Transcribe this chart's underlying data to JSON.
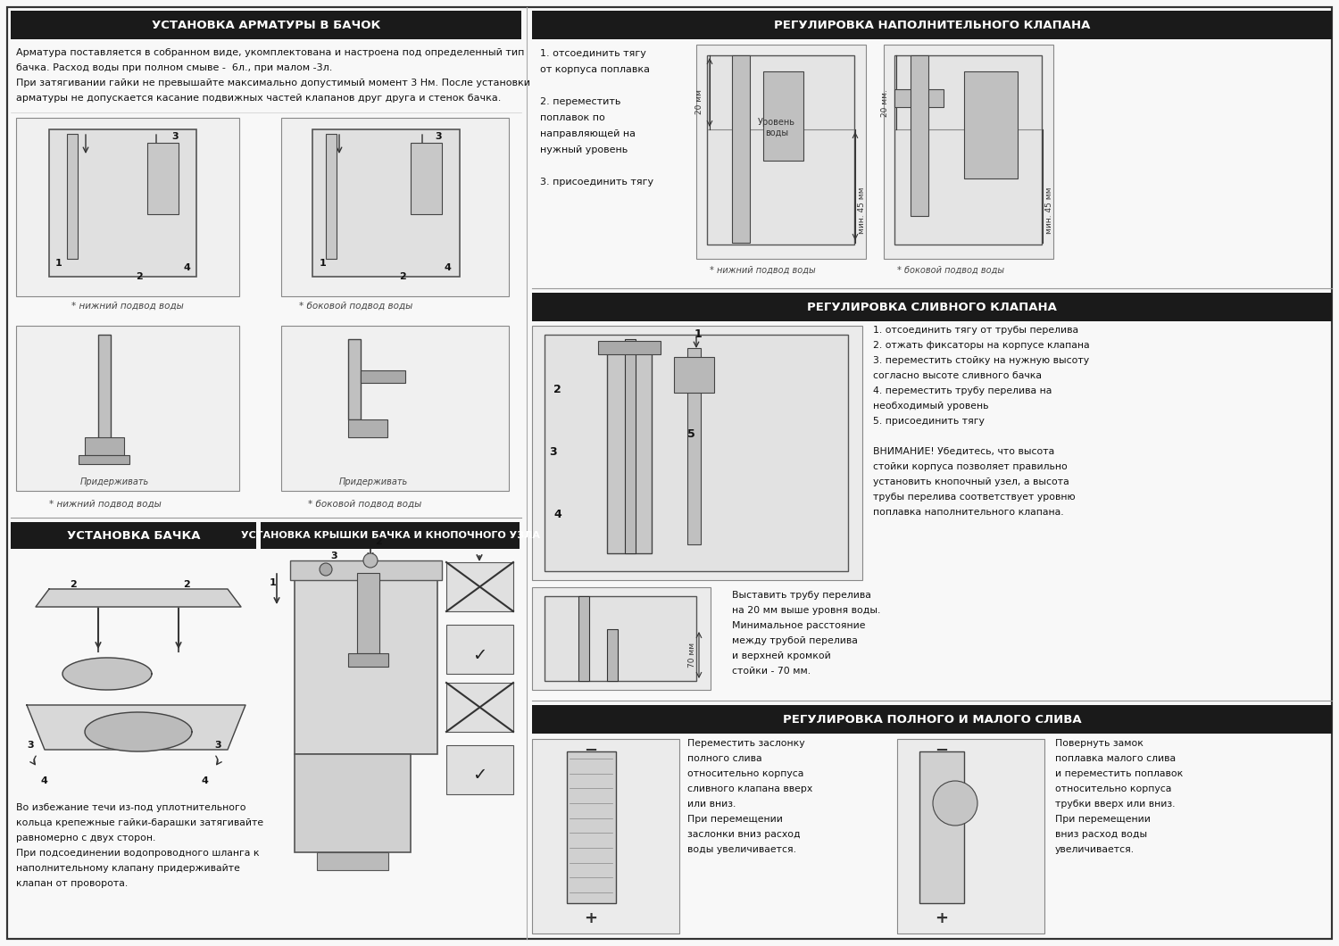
{
  "bg_color": "#f8f8f8",
  "header_bg": "#1a1a1a",
  "header_text_color": "#ffffff",
  "body_text_color": "#111111",
  "line_color": "#555555",
  "h1": "УСТАНОВКА АРМАТУРЫ В БАЧОК",
  "h2": "РЕГУЛИРОВКА НАПОЛНИТЕЛЬНОГО КЛАПАНА",
  "h3": "РЕГУЛИРОВКА СЛИВНОГО КЛАПАНА",
  "h4": "УСТАНОВКА БАЧКА",
  "h5": "УСТАНОВКА КРЫШКИ БАЧКА И КНОПОЧНОГО УЗЛА",
  "h6": "РЕГУЛИРОВКА ПОЛНОГО И МАЛОГО СЛИВА",
  "text1": [
    "Арматура поставляется в собранном виде, укомплектована и настроена под определенный тип",
    "бачка. Расход воды при полном смыве -  6л., при малом -3л.",
    "При затягивании гайки не превышайте максимально допустимый момент 3 Нм. После установки",
    "арматуры не допускается касание подвижных частей клапанов друг друга и стенок бачка."
  ],
  "label_niz": "* нижний подвод воды",
  "label_bok": "* боковой подвод воды",
  "label_hold": "Придерживать",
  "text2": [
    "1. отсоединить тягу",
    "от корпуса поплавка",
    "",
    "2. переместить",
    "поплавок по",
    "направляющей на",
    "нужный уровень",
    "",
    "3. присоединить тягу"
  ],
  "label_urov": "Уровень\nводы",
  "dim_20": "20 мм",
  "dim_45": "мин. 45 мм",
  "dim_20b": "20 мм.",
  "dim_45b": "мин. 45 мм",
  "label_niz2": "* нижний подвод воды",
  "label_bok2": "* боковой подвод воды",
  "text3": [
    "1. отсоединить тягу от трубы перелива",
    "2. отжать фиксаторы на корпусе клапана",
    "3. переместить стойку на нужную высоту",
    "согласно высоте сливного бачка",
    "4. переместить трубу перелива на",
    "необходимый уровень",
    "5. присоединить тягу",
    "",
    "ВНИМАНИЕ! Убедитесь, что высота",
    "стойки корпуса позволяет правильно",
    "установить кнопочный узел, а высота",
    "трубы перелива соответствует уровню",
    "поплавка наполнительного клапана."
  ],
  "text3b": [
    "Выставить трубу перелива",
    "на 20 мм выше уровня воды.",
    "Минимальное расстояние",
    "между трубой перелива",
    "и верхней кромкой",
    "стойки - 70 мм."
  ],
  "dim_70": "70 мм",
  "text4": [
    "Во избежание течи из-под уплотнительного",
    "кольца крепежные гайки-барашки затягивайте",
    "равномерно с двух сторон.",
    "При подсоединении водопроводного шланга к",
    "наполнительному клапану придерживайте",
    "клапан от проворота."
  ],
  "text6a": [
    "Переместить заслонку",
    "полного слива",
    "относительно корпуса",
    "сливного клапана вверх",
    "или вниз.",
    "При перемещении",
    "заслонки вниз расход",
    "воды увеличивается."
  ],
  "text6b": [
    "Повернуть замок",
    "поплавка малого слива",
    "и переместить поплавок",
    "относительно корпуса",
    "трубки вверх или вниз.",
    "При перемещении",
    "вниз расход воды",
    "увеличивается."
  ]
}
